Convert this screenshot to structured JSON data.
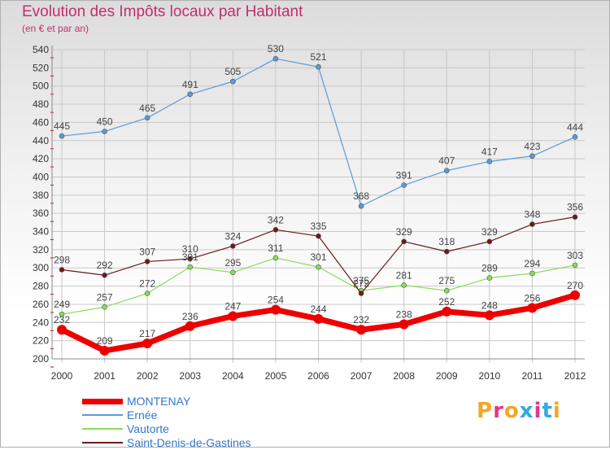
{
  "colors": {
    "title": "#c0306a",
    "axis_text": "#333333",
    "grid": "#c8c8c8",
    "tick_red": "#cc0000"
  },
  "chart_data": {
    "type": "line",
    "title": "Evolution des Impôts locaux par Habitant",
    "subtitle": "(en € et par an)",
    "xlabel": "",
    "ylabel": "",
    "ylim": [
      200,
      540
    ],
    "ytick_step": 20,
    "x": [
      "2000",
      "2001",
      "2002",
      "2003",
      "2004",
      "2005",
      "2006",
      "2007",
      "2008",
      "2009",
      "2010",
      "2011",
      "2012"
    ],
    "series": [
      {
        "name": "MONTENAY",
        "color": "#ee0000",
        "width": 7,
        "values": [
          232,
          209,
          217,
          236,
          247,
          254,
          244,
          232,
          238,
          252,
          248,
          256,
          270
        ]
      },
      {
        "name": "Ernée",
        "color": "#5b9bd5",
        "width": 1.2,
        "values": [
          445,
          450,
          465,
          491,
          505,
          530,
          521,
          368,
          391,
          407,
          417,
          423,
          444
        ]
      },
      {
        "name": "Vautorte",
        "color": "#88dd55",
        "width": 1.2,
        "values": [
          249,
          257,
          272,
          301,
          295,
          311,
          301,
          275,
          281,
          275,
          289,
          294,
          303
        ]
      },
      {
        "name": "Saint-Denis-de-Gastines",
        "color": "#6b1a1a",
        "width": 1.2,
        "values": [
          298,
          292,
          307,
          310,
          324,
          342,
          335,
          272,
          329,
          318,
          329,
          348,
          356
        ]
      }
    ]
  },
  "legend": [
    {
      "label": "MONTENAY",
      "color": "#ee0000",
      "width": 7,
      "text_color": "#3377cc"
    },
    {
      "label": "Ernée",
      "color": "#5b9bd5",
      "width": 2,
      "text_color": "#3377cc"
    },
    {
      "label": "Vautorte",
      "color": "#88dd55",
      "width": 2,
      "text_color": "#3377cc"
    },
    {
      "label": "Saint-Denis-de-Gastines",
      "color": "#6b1a1a",
      "width": 2,
      "text_color": "#3377cc"
    }
  ],
  "logo": {
    "text": "Proxiti",
    "letter_colors": [
      "#f5a623",
      "#e2398a",
      "#f5a623",
      "#33aadd",
      "#e2398a",
      "#33aadd",
      "#f5a623"
    ]
  }
}
